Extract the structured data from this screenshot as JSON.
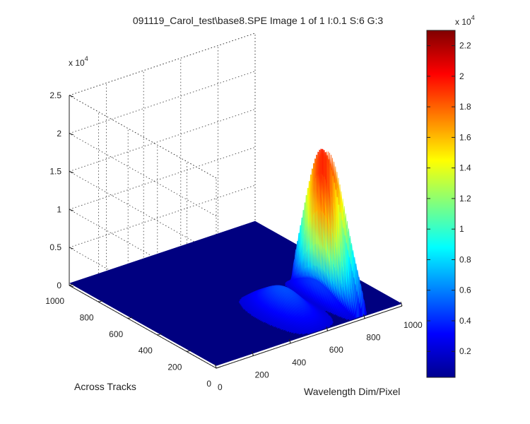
{
  "chart_data": {
    "type": "surface",
    "title": "091119_Carol_test\\base8.SPE  Image 1 of 1  I:0.1  S:6  G:3",
    "xlabel": "Wavelength Dim/Pixel",
    "ylabel": "Across Tracks",
    "zlabel": "",
    "x_ticks": [
      "0",
      "200",
      "400",
      "600",
      "800",
      "1000"
    ],
    "y_ticks": [
      "0",
      "200",
      "400",
      "600",
      "800",
      "1000"
    ],
    "z_ticks": [
      "0",
      "0.5",
      "1",
      "1.5",
      "2",
      "2.5"
    ],
    "z_exponent_prefix": "x 10",
    "z_exponent_power": "4",
    "xlim": [
      0,
      1000
    ],
    "ylim": [
      0,
      1000
    ],
    "zlim": [
      0,
      25000
    ],
    "grid": true,
    "colormap": "jet",
    "colorbar": {
      "ticks": [
        "0.2",
        "0.4",
        "0.6",
        "0.8",
        "1",
        "1.2",
        "1.4",
        "1.6",
        "1.8",
        "2",
        "2.2"
      ],
      "exponent_prefix": "x 10",
      "exponent_power": "4",
      "range": [
        300,
        23000
      ]
    },
    "spectrum_features": [
      {
        "wavelength_pixel": 560,
        "peak_counts": 3000,
        "shape": "broad band"
      },
      {
        "wavelength_pixel": 770,
        "peak_counts": 20000,
        "shape": "sharp peak"
      },
      {
        "wavelength_pixel": 800,
        "peak_counts": 19000,
        "shape": "sharp peak"
      }
    ],
    "track_region": [
      0,
      450
    ]
  }
}
